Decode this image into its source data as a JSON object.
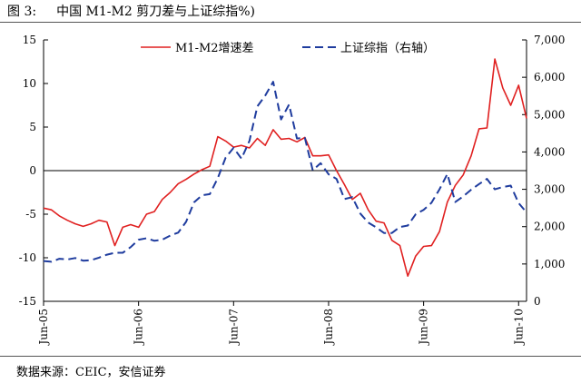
{
  "header": {
    "figure_label": "图 3:",
    "title": "中国 M1-M2 剪刀差与上证综指%)"
  },
  "footer": {
    "source": "数据来源：CEIC，安信证券"
  },
  "colors": {
    "m1m2": "#e02020",
    "sh": "#1f3c9e"
  },
  "chart_data": {
    "type": "line",
    "x_ticks": [
      "Jun-05",
      "Jun-06",
      "Jun-07",
      "Jun-08",
      "Jun-09",
      "Jun-10"
    ],
    "x_range": [
      0,
      61
    ],
    "y_left": {
      "min": -15,
      "max": 15,
      "ticks": [
        -15,
        -10,
        -5,
        0,
        5,
        10,
        15
      ]
    },
    "y_right": {
      "min": 0,
      "max": 7000,
      "ticks": [
        "0",
        "1,000",
        "2,000",
        "3,000",
        "4,000",
        "5,000",
        "6,000",
        "7,000"
      ]
    },
    "legend_position": "top",
    "series": [
      {
        "name": "M1-M2增速差",
        "axis": "left",
        "style": "solid",
        "color": "#e02020",
        "x": [
          0,
          1,
          2,
          3,
          4,
          5,
          6,
          7,
          8,
          9,
          10,
          11,
          12,
          13,
          14,
          15,
          16,
          17,
          18,
          19,
          20,
          21,
          22,
          23,
          24,
          25,
          26,
          27,
          28,
          29,
          30,
          31,
          32,
          33,
          34,
          35,
          36,
          37,
          38,
          39,
          40,
          41,
          42,
          43,
          44,
          45,
          46,
          47,
          48,
          49,
          50,
          51,
          52,
          53,
          54,
          55,
          56,
          57,
          58,
          59,
          60,
          61
        ],
        "values": [
          -4.3,
          -4.5,
          -5.2,
          -5.7,
          -6.1,
          -6.4,
          -6.1,
          -5.7,
          -5.9,
          -8.6,
          -6.5,
          -6.2,
          -6.5,
          -5.0,
          -4.7,
          -3.3,
          -2.5,
          -1.5,
          -1.0,
          -0.4,
          0.1,
          0.5,
          3.9,
          3.4,
          2.7,
          2.9,
          2.6,
          3.7,
          2.9,
          4.7,
          3.6,
          3.7,
          3.3,
          3.8,
          1.7,
          1.7,
          1.8,
          0.0,
          -1.6,
          -3.3,
          -2.6,
          -4.5,
          -5.8,
          -6.0,
          -8.0,
          -8.6,
          -12.1,
          -9.8,
          -8.7,
          -8.6,
          -7.0,
          -3.6,
          -1.7,
          -0.5,
          1.7,
          4.8,
          4.9,
          12.8,
          9.5,
          7.5,
          9.8,
          6.0
        ]
      },
      {
        "name": "上证综指（右轴）",
        "axis": "right",
        "style": "dashed",
        "color": "#1f3c9e",
        "x": [
          0,
          1,
          2,
          3,
          4,
          5,
          6,
          7,
          8,
          9,
          10,
          11,
          12,
          13,
          14,
          15,
          16,
          17,
          18,
          19,
          20,
          21,
          22,
          23,
          24,
          25,
          26,
          27,
          28,
          29,
          30,
          31,
          32,
          33,
          34,
          35,
          36,
          37,
          38,
          39,
          40,
          41,
          42,
          43,
          44,
          45,
          46,
          47,
          48,
          49,
          50,
          51,
          52,
          53,
          54,
          55,
          56,
          57,
          58,
          59,
          60,
          61
        ],
        "values": [
          1080,
          1060,
          1140,
          1120,
          1160,
          1090,
          1100,
          1170,
          1250,
          1300,
          1300,
          1450,
          1650,
          1690,
          1620,
          1650,
          1760,
          1840,
          2130,
          2650,
          2840,
          2870,
          3300,
          3850,
          4110,
          3820,
          4300,
          5220,
          5510,
          5880,
          4870,
          5270,
          4360,
          4380,
          3510,
          3700,
          3400,
          3280,
          2740,
          2790,
          2350,
          2110,
          1980,
          1830,
          1830,
          1990,
          2030,
          2330,
          2450,
          2640,
          3000,
          3410,
          2660,
          2810,
          2990,
          3140,
          3280,
          3000,
          3060,
          3100,
          2630,
          2380
        ]
      }
    ]
  }
}
